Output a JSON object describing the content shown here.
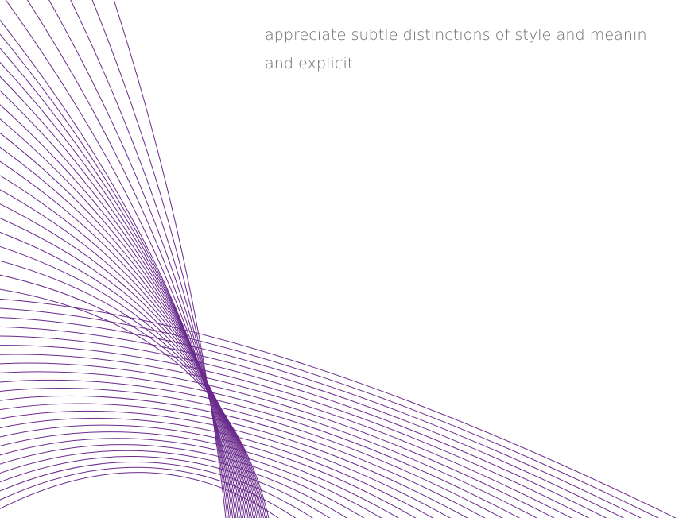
{
  "body": {
    "lines": [
      "appreciate subtle distinctions of style and meanin",
      "and explicit"
    ]
  }
}
